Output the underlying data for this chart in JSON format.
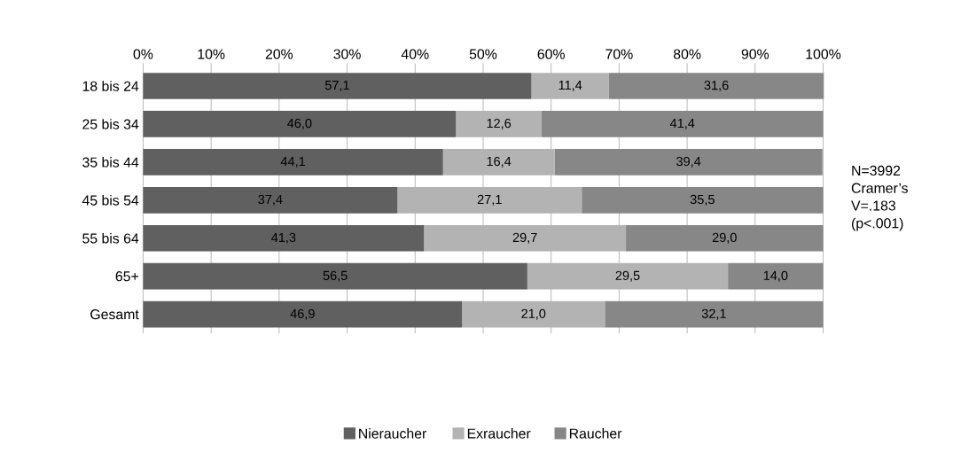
{
  "chart_data": {
    "type": "bar",
    "orientation": "horizontal",
    "stacked": true,
    "categories": [
      "18 bis 24",
      "25 bis 34",
      "35 bis 44",
      "45 bis 54",
      "55 bis 64",
      "65+",
      "Gesamt"
    ],
    "series": [
      {
        "name": "Nieraucher",
        "color": "#606060",
        "values": [
          57.1,
          46.0,
          44.1,
          37.4,
          41.3,
          56.5,
          46.9
        ],
        "value_labels": [
          "57,1",
          "46,0",
          "44,1",
          "37,4",
          "41,3",
          "56,5",
          "46,9"
        ]
      },
      {
        "name": "Exraucher",
        "color": "#b3b3b3",
        "values": [
          11.4,
          12.6,
          16.4,
          27.1,
          29.7,
          29.5,
          21.0
        ],
        "value_labels": [
          "11,4",
          "12,6",
          "16,4",
          "27,1",
          "29,7",
          "29,5",
          "21,0"
        ]
      },
      {
        "name": "Raucher",
        "color": "#878787",
        "values": [
          31.6,
          41.4,
          39.4,
          35.5,
          29.0,
          14.0,
          32.1
        ],
        "value_labels": [
          "31,6",
          "41,4",
          "39,4",
          "35,5",
          "29,0",
          "14,0",
          "32,1"
        ]
      }
    ],
    "xlim": [
      0,
      100
    ],
    "xticks": [
      {
        "value": 0,
        "label": "0%"
      },
      {
        "value": 10,
        "label": "10%"
      },
      {
        "value": 20,
        "label": "20%"
      },
      {
        "value": 30,
        "label": "30%"
      },
      {
        "value": 40,
        "label": "40%"
      },
      {
        "value": 50,
        "label": "50%"
      },
      {
        "value": 60,
        "label": "60%"
      },
      {
        "value": 70,
        "label": "70%"
      },
      {
        "value": 80,
        "label": "80%"
      },
      {
        "value": 90,
        "label": "90%"
      },
      {
        "value": 100,
        "label": "100%"
      }
    ],
    "grid": "x",
    "legend": "bottom",
    "annotations": [
      "N=3992 Cramer’s V=.183 (p<.001)"
    ]
  }
}
